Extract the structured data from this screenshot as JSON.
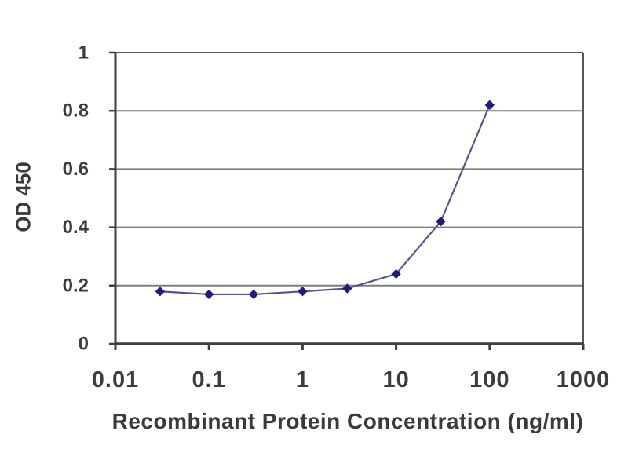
{
  "figure": {
    "background_color": "#ffffff",
    "description": "ELISA standard curve line chart"
  },
  "chart_data": {
    "type": "line",
    "title": "",
    "xlabel": "Recombinant Protein Concentration (ng/ml)",
    "ylabel": "OD 450",
    "x_scale": "log",
    "y_scale": "linear",
    "xlim": [
      0.01,
      1000
    ],
    "ylim": [
      0,
      1
    ],
    "x_ticks": {
      "values": [
        0.01,
        0.1,
        1,
        10,
        100,
        1000
      ],
      "labels": [
        "0.01",
        "0.1",
        "1",
        "10",
        "100",
        "1000"
      ]
    },
    "y_ticks": {
      "values": [
        0,
        0.2,
        0.4,
        0.6,
        0.8,
        1
      ],
      "labels": [
        "0",
        "0.2",
        "0.4",
        "0.6",
        "0.8",
        "1"
      ]
    },
    "grid": "horizontal",
    "legend_position": "none",
    "series": [
      {
        "name": "OD 450",
        "marker": "diamond",
        "x": [
          0.03,
          0.1,
          0.3,
          1,
          3,
          10,
          30,
          100
        ],
        "y": [
          0.18,
          0.17,
          0.17,
          0.18,
          0.19,
          0.24,
          0.42,
          0.82
        ]
      }
    ],
    "colors": {
      "marker": "#1e1e78",
      "line": "#55558c",
      "grid": "#7d7d7d",
      "frame": "#585858",
      "axis": "#3f3f3f",
      "text": "#3c3c3c"
    }
  }
}
